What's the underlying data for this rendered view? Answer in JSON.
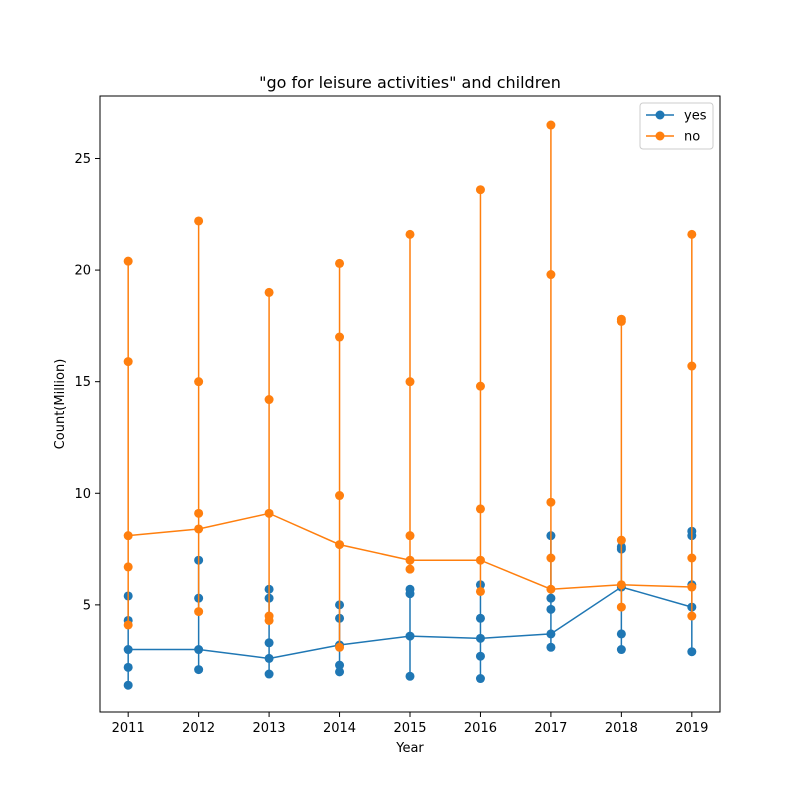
{
  "chart_data": {
    "type": "line",
    "title": "\"go for leisure activities\" and children",
    "xlabel": "Year",
    "ylabel": "Count(Million)",
    "x": [
      2011,
      2012,
      2013,
      2014,
      2015,
      2016,
      2017,
      2018,
      2019
    ],
    "ylim": [
      0.2,
      27.8
    ],
    "yticks": [
      5,
      10,
      15,
      20,
      25
    ],
    "grid": false,
    "legend_position": "top-right",
    "series": [
      {
        "name": "yes",
        "color": "#1f77b4",
        "values": [
          3.0,
          3.0,
          2.6,
          3.2,
          3.6,
          3.5,
          3.7,
          5.8,
          4.9
        ],
        "extra_points": [
          [
            1.4,
            2.2,
            3.0,
            4.3,
            5.4
          ],
          [
            2.1,
            3.0,
            5.3,
            7.0
          ],
          [
            1.9,
            2.6,
            3.3,
            5.3,
            5.7
          ],
          [
            2.0,
            2.3,
            3.2,
            4.4,
            5.0
          ],
          [
            1.8,
            3.6,
            5.5,
            5.7
          ],
          [
            1.7,
            2.7,
            3.5,
            4.4,
            5.9
          ],
          [
            3.1,
            3.7,
            4.8,
            5.3,
            8.1
          ],
          [
            3.0,
            3.7,
            5.8,
            7.5,
            7.6
          ],
          [
            2.9,
            4.9,
            5.9,
            8.1,
            8.3
          ]
        ]
      },
      {
        "name": "no",
        "color": "#ff7f0e",
        "values": [
          8.1,
          8.4,
          9.1,
          7.7,
          7.0,
          7.0,
          5.7,
          5.9,
          5.8
        ],
        "extra_points": [
          [
            4.1,
            6.7,
            8.1,
            15.9,
            20.4
          ],
          [
            4.7,
            8.4,
            9.1,
            15.0,
            22.2
          ],
          [
            4.3,
            4.5,
            9.1,
            14.2,
            19.0
          ],
          [
            3.1,
            7.7,
            9.9,
            17.0,
            20.3
          ],
          [
            6.6,
            7.0,
            8.1,
            15.0,
            21.6
          ],
          [
            5.6,
            7.0,
            9.3,
            14.8,
            23.6
          ],
          [
            5.7,
            7.1,
            9.6,
            19.8,
            26.5
          ],
          [
            4.9,
            5.9,
            7.9,
            17.7,
            17.8
          ],
          [
            4.5,
            5.8,
            7.1,
            15.7,
            21.6
          ]
        ]
      }
    ]
  }
}
